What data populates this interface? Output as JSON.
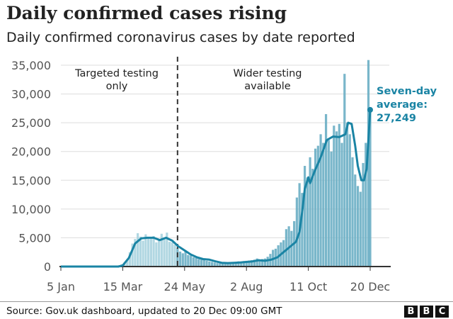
{
  "chart_data": {
    "type": "bar",
    "title": "Daily confirmed cases rising",
    "subtitle": "Daily confirmed coronavirus cases by date reported",
    "ylim": [
      0,
      35000
    ],
    "yticks": [
      "0",
      "5,000",
      "10,000",
      "15,000",
      "20,000",
      "25,000",
      "30,000",
      "35,000"
    ],
    "ytick_values": [
      0,
      5000,
      10000,
      15000,
      20000,
      25000,
      30000,
      35000
    ],
    "xlim_days": [
      0,
      350
    ],
    "xticks": [
      {
        "label": "5 Jan",
        "day": 0
      },
      {
        "label": "15 Mar",
        "day": 70
      },
      {
        "label": "24 May",
        "day": 140
      },
      {
        "label": "2 Aug",
        "day": 210
      },
      {
        "label": "11 Oct",
        "day": 280
      },
      {
        "label": "20 Dec",
        "day": 350
      }
    ],
    "divider_day": 132,
    "annotations": {
      "left": [
        "Targeted testing",
        "only"
      ],
      "right": [
        "Wider testing",
        "available"
      ]
    },
    "daily_cases": [
      [
        60,
        50
      ],
      [
        63,
        100
      ],
      [
        66,
        200
      ],
      [
        69,
        400
      ],
      [
        72,
        700
      ],
      [
        75,
        1200
      ],
      [
        78,
        2500
      ],
      [
        81,
        4000
      ],
      [
        84,
        4800
      ],
      [
        87,
        5800
      ],
      [
        90,
        5200
      ],
      [
        93,
        4500
      ],
      [
        96,
        5600
      ],
      [
        99,
        5000
      ],
      [
        102,
        4900
      ],
      [
        105,
        5300
      ],
      [
        108,
        4200
      ],
      [
        111,
        4600
      ],
      [
        114,
        5700
      ],
      [
        117,
        5000
      ],
      [
        120,
        5900
      ],
      [
        123,
        4300
      ],
      [
        126,
        4200
      ],
      [
        129,
        3800
      ],
      [
        132,
        3200
      ],
      [
        135,
        2600
      ],
      [
        138,
        2300
      ],
      [
        141,
        2700
      ],
      [
        144,
        2000
      ],
      [
        147,
        1900
      ],
      [
        150,
        1600
      ],
      [
        153,
        1500
      ],
      [
        156,
        1300
      ],
      [
        159,
        1200
      ],
      [
        162,
        1300
      ],
      [
        165,
        1000
      ],
      [
        168,
        900
      ],
      [
        171,
        800
      ],
      [
        174,
        700
      ],
      [
        177,
        600
      ],
      [
        180,
        550
      ],
      [
        183,
        600
      ],
      [
        186,
        700
      ],
      [
        189,
        650
      ],
      [
        192,
        750
      ],
      [
        195,
        700
      ],
      [
        198,
        800
      ],
      [
        201,
        900
      ],
      [
        204,
        800
      ],
      [
        207,
        950
      ],
      [
        210,
        1000
      ],
      [
        213,
        1050
      ],
      [
        216,
        1100
      ],
      [
        219,
        1200
      ],
      [
        222,
        1400
      ],
      [
        225,
        1000
      ],
      [
        228,
        1300
      ],
      [
        231,
        1400
      ],
      [
        234,
        1700
      ],
      [
        237,
        2200
      ],
      [
        240,
        2900
      ],
      [
        243,
        3100
      ],
      [
        246,
        3700
      ],
      [
        249,
        4200
      ],
      [
        252,
        4600
      ],
      [
        255,
        6500
      ],
      [
        258,
        7000
      ],
      [
        261,
        6200
      ],
      [
        264,
        7900
      ],
      [
        267,
        12000
      ],
      [
        270,
        14500
      ],
      [
        273,
        12800
      ],
      [
        276,
        17500
      ],
      [
        279,
        15500
      ],
      [
        282,
        19000
      ],
      [
        285,
        17000
      ],
      [
        288,
        20500
      ],
      [
        291,
        21000
      ],
      [
        294,
        23000
      ],
      [
        297,
        21500
      ],
      [
        300,
        26500
      ],
      [
        303,
        22000
      ],
      [
        306,
        20000
      ],
      [
        309,
        24500
      ],
      [
        312,
        23500
      ],
      [
        315,
        24800
      ],
      [
        318,
        21500
      ],
      [
        321,
        33500
      ],
      [
        324,
        25000
      ],
      [
        327,
        23000
      ],
      [
        330,
        19000
      ],
      [
        333,
        16000
      ],
      [
        336,
        14000
      ],
      [
        339,
        13000
      ],
      [
        342,
        18000
      ],
      [
        345,
        21500
      ],
      [
        348,
        35900
      ],
      [
        350,
        27000
      ]
    ],
    "seven_day_average": [
      [
        0,
        0
      ],
      [
        65,
        0
      ],
      [
        70,
        200
      ],
      [
        77,
        1500
      ],
      [
        84,
        4000
      ],
      [
        91,
        4900
      ],
      [
        98,
        5000
      ],
      [
        105,
        5000
      ],
      [
        112,
        4600
      ],
      [
        119,
        5000
      ],
      [
        126,
        4500
      ],
      [
        133,
        3500
      ],
      [
        140,
        2800
      ],
      [
        147,
        2100
      ],
      [
        154,
        1600
      ],
      [
        161,
        1300
      ],
      [
        168,
        1200
      ],
      [
        175,
        900
      ],
      [
        182,
        650
      ],
      [
        189,
        600
      ],
      [
        196,
        650
      ],
      [
        203,
        700
      ],
      [
        210,
        800
      ],
      [
        217,
        900
      ],
      [
        224,
        1100
      ],
      [
        231,
        1000
      ],
      [
        238,
        1200
      ],
      [
        245,
        1600
      ],
      [
        252,
        2500
      ],
      [
        259,
        3400
      ],
      [
        266,
        4300
      ],
      [
        270,
        6000
      ],
      [
        273,
        9500
      ],
      [
        276,
        13500
      ],
      [
        280,
        15500
      ],
      [
        282,
        14500
      ],
      [
        287,
        16500
      ],
      [
        294,
        19000
      ],
      [
        301,
        22000
      ],
      [
        308,
        22600
      ],
      [
        315,
        22500
      ],
      [
        322,
        23000
      ],
      [
        325,
        25000
      ],
      [
        329,
        24800
      ],
      [
        333,
        21000
      ],
      [
        336,
        17500
      ],
      [
        340,
        15000
      ],
      [
        343,
        15000
      ],
      [
        346,
        17000
      ],
      [
        348,
        22000
      ],
      [
        350,
        27249
      ]
    ],
    "latest_label": [
      "Seven-day",
      "average:",
      "27,249"
    ],
    "colors": {
      "bars_before": "#a9d3df",
      "bars_after": "#6aaec4",
      "line": "#1a84a4"
    }
  },
  "footer": {
    "source": "Source: Gov.uk dashboard, updated to 20 Dec 09:00 GMT",
    "logo": [
      "B",
      "B",
      "C"
    ]
  }
}
